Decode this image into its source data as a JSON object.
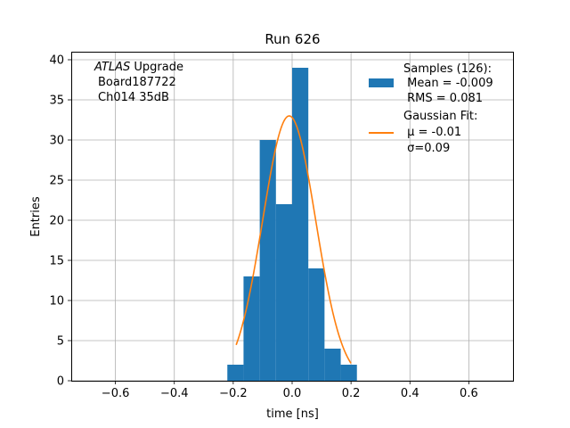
{
  "chart_data": {
    "type": "bar",
    "title": "Run 626",
    "xlabel": "time [ns]",
    "ylabel": "Entries",
    "xlim": [
      -0.75,
      0.75
    ],
    "ylim": [
      0,
      41
    ],
    "grid": true,
    "x_ticks": [
      -0.6,
      -0.4,
      -0.2,
      0.0,
      0.2,
      0.4,
      0.6
    ],
    "x_tick_labels": [
      "−0.6",
      "−0.4",
      "−0.2",
      "0.0",
      "0.2",
      "0.4",
      "0.6"
    ],
    "y_ticks": [
      0,
      5,
      10,
      15,
      20,
      25,
      30,
      35,
      40
    ],
    "y_tick_labels": [
      "0",
      "5",
      "10",
      "15",
      "20",
      "25",
      "30",
      "35",
      "40"
    ],
    "histogram": {
      "name": "Samples (126):",
      "color": "#1f77b4",
      "bins": [
        {
          "x0": -0.22,
          "x1": -0.165,
          "count": 2
        },
        {
          "x0": -0.165,
          "x1": -0.11,
          "count": 13
        },
        {
          "x0": -0.11,
          "x1": -0.055,
          "count": 30
        },
        {
          "x0": -0.055,
          "x1": 0.0,
          "count": 22
        },
        {
          "x0": 0.0,
          "x1": 0.055,
          "count": 39
        },
        {
          "x0": 0.055,
          "x1": 0.11,
          "count": 14
        },
        {
          "x0": 0.11,
          "x1": 0.165,
          "count": 4
        },
        {
          "x0": 0.165,
          "x1": 0.22,
          "count": 2
        }
      ]
    },
    "fit": {
      "name": "Gaussian Fit:",
      "color": "#ff7f0e",
      "amplitude": 33,
      "mu": -0.01,
      "sigma": 0.09,
      "x_range": [
        -0.19,
        0.2
      ]
    },
    "annotation_lines": [
      "ATLAS",
      " Upgrade",
      "Board187722",
      "Ch014 35dB"
    ],
    "legend": {
      "placement": "top-right",
      "hist_lines": [
        "Samples (126):",
        " Mean = -0.009",
        " RMS = 0.081"
      ],
      "fit_lines": [
        "Gaussian Fit:",
        " μ = -0.01",
        " σ=0.09"
      ]
    }
  }
}
